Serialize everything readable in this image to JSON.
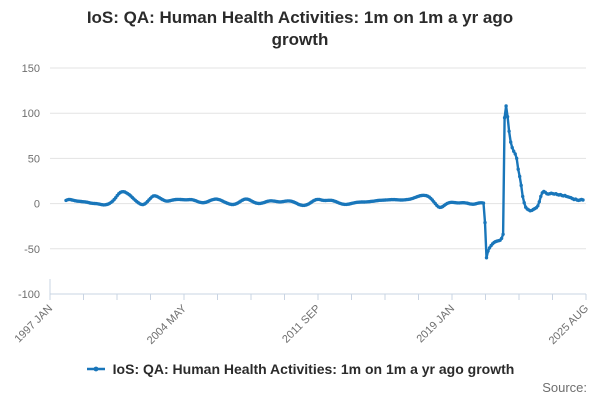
{
  "title_line1": "IoS: QA: Human Health Activities: 1m on 1m a yr ago",
  "title_line2": "growth",
  "legend": {
    "label": "IoS: QA: Human Health Activities: 1m on 1m a yr ago growth"
  },
  "source_label": "Source:",
  "colors": {
    "line": "#1976ba",
    "grid": "#e3e3e3",
    "axis": "#c9d4e3",
    "tick_label": "#6f6f6f",
    "text": "#2b2b2b"
  },
  "chart_data": {
    "type": "line",
    "title": "IoS: QA: Human Health Activities: 1m on 1m a yr ago growth",
    "series_name": "IoS: QA: Human Health Activities: 1m on 1m a yr ago growth",
    "frequency": "monthly",
    "x_start": "1997 JAN",
    "x_end": "2025 AUG",
    "x_tick_labels": [
      "1997 JAN",
      "2004 MAY",
      "2011 SEP",
      "2019 JAN",
      "2025 AUG"
    ],
    "ylim": [
      -100,
      150
    ],
    "y_ticks": [
      150,
      100,
      50,
      0,
      -50,
      -100
    ],
    "grid": true,
    "legend_position": "bottom",
    "marker": "dot",
    "values": [
      3.5,
      4.2,
      4.6,
      4.4,
      4.0,
      3.6,
      3.2,
      2.9,
      2.7,
      2.5,
      2.3,
      2.1,
      2.0,
      1.8,
      1.5,
      1.1,
      0.7,
      0.4,
      0.2,
      0.1,
      0.0,
      -0.2,
      -0.5,
      -0.9,
      -1.2,
      -1.4,
      -1.3,
      -1.0,
      -0.5,
      0.3,
      1.4,
      2.8,
      4.5,
      6.5,
      8.8,
      11.0,
      12.3,
      13.0,
      13.2,
      12.8,
      12.0,
      11.0,
      9.8,
      8.4,
      6.8,
      5.2,
      3.6,
      2.2,
      1.0,
      -0.2,
      -0.9,
      -1.1,
      -0.6,
      0.6,
      2.2,
      4.0,
      5.8,
      7.4,
      8.4,
      8.6,
      8.2,
      7.4,
      6.4,
      5.4,
      4.4,
      3.6,
      3.0,
      2.8,
      2.9,
      3.2,
      3.6,
      4.0,
      4.3,
      4.5,
      4.6,
      4.6,
      4.5,
      4.4,
      4.3,
      4.2,
      4.2,
      4.3,
      4.4,
      4.4,
      4.2,
      3.8,
      3.2,
      2.5,
      1.9,
      1.4,
      1.1,
      1.0,
      1.2,
      1.6,
      2.2,
      2.9,
      3.6,
      4.2,
      4.7,
      5.0,
      5.0,
      4.7,
      4.2,
      3.5,
      2.7,
      1.9,
      1.1,
      0.4,
      -0.2,
      -0.7,
      -1.0,
      -1.0,
      -0.7,
      -0.1,
      0.7,
      1.7,
      2.8,
      3.8,
      4.6,
      5.0,
      5.0,
      4.6,
      3.9,
      3.0,
      2.1,
      1.3,
      0.7,
      0.3,
      0.1,
      0.2,
      0.5,
      1.0,
      1.6,
      2.2,
      2.7,
      3.0,
      3.1,
      3.0,
      2.8,
      2.5,
      2.2,
      2.0,
      1.9,
      2.0,
      2.2,
      2.5,
      2.8,
      3.0,
      3.0,
      2.8,
      2.4,
      1.8,
      1.1,
      0.3,
      -0.5,
      -1.2,
      -1.7,
      -2.0,
      -2.0,
      -1.7,
      -1.1,
      -0.3,
      0.7,
      1.8,
      2.9,
      3.8,
      4.4,
      4.7,
      4.6,
      4.2,
      3.8,
      3.5,
      3.4,
      3.5,
      3.6,
      3.7,
      3.6,
      3.3,
      2.8,
      2.2,
      1.5,
      0.8,
      0.2,
      -0.3,
      -0.7,
      -0.9,
      -0.9,
      -0.7,
      -0.4,
      0.0,
      0.4,
      0.8,
      1.1,
      1.4,
      1.6,
      1.7,
      1.8,
      1.8,
      1.8,
      1.9,
      2.0,
      2.1,
      2.3,
      2.5,
      2.7,
      3.0,
      3.2,
      3.4,
      3.6,
      3.7,
      3.8,
      3.9,
      4.0,
      4.1,
      4.2,
      4.3,
      4.4,
      4.4,
      4.4,
      4.3,
      4.2,
      4.1,
      4.0,
      4.0,
      4.1,
      4.2,
      4.4,
      4.6,
      4.9,
      5.3,
      5.8,
      6.4,
      7.0,
      7.6,
      8.2,
      8.7,
      9.0,
      9.2,
      9.1,
      8.8,
      8.2,
      7.2,
      5.8,
      4.0,
      2.0,
      0.0,
      -2.0,
      -3.5,
      -4.2,
      -4.0,
      -3.2,
      -2.0,
      -0.8,
      0.2,
      0.9,
      1.3,
      1.4,
      1.3,
      1.1,
      0.9,
      0.8,
      0.8,
      0.9,
      1.0,
      1.0,
      0.8,
      0.5,
      0.1,
      -0.3,
      -0.6,
      -0.7,
      -0.5,
      -0.1,
      0.3,
      0.7,
      0.9,
      0.9,
      0.6,
      -21.0,
      -60.0,
      -52.5,
      -49.0,
      -46.5,
      -44.5,
      -43.0,
      -42.0,
      -41.5,
      -41.0,
      -40.5,
      -38.5,
      -34.0,
      95.0,
      108.0,
      96.0,
      80.0,
      68.0,
      62.0,
      58.0,
      55.0,
      50.0,
      38.0,
      30.0,
      20.0,
      8.0,
      1.0,
      -4.0,
      -6.0,
      -7.0,
      -8.0,
      -7.5,
      -6.5,
      -5.5,
      -4.5,
      -2.5,
      2.0,
      8.0,
      12.0,
      13.5,
      12.5,
      11.0,
      10.5,
      11.0,
      11.5,
      11.0,
      10.5,
      11.0,
      10.0,
      9.5,
      10.0,
      9.0,
      8.5,
      9.0,
      8.0,
      7.5,
      7.0,
      6.5,
      5.5,
      4.5,
      5.0,
      4.0,
      3.5,
      4.0,
      4.5,
      4.0
    ]
  }
}
